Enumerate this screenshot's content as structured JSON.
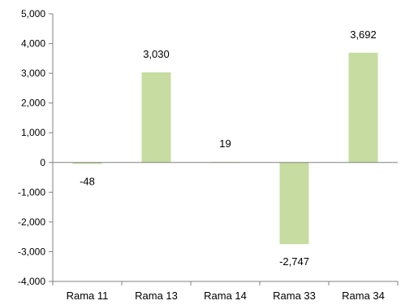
{
  "chart_data": {
    "type": "bar",
    "title": "",
    "xlabel": "",
    "ylabel": "",
    "categories": [
      "Rama 11",
      "Rama 13",
      "Rama 14",
      "Rama 33",
      "Rama 34"
    ],
    "values": [
      -48,
      3030,
      19,
      -2747,
      3692
    ],
    "data_labels": [
      "-48",
      "3,030",
      "19",
      "-2,747",
      "3,692"
    ],
    "y_ticks": [
      5000,
      4000,
      3000,
      2000,
      1000,
      0,
      -1000,
      -2000,
      -3000,
      -4000
    ],
    "y_tick_labels": [
      "5,000",
      "4,000",
      "3,000",
      "2,000",
      "1,000",
      "0",
      "-1,000",
      "-2,000",
      "-3,000",
      "-4,000"
    ],
    "ylim": [
      -4000,
      5000
    ],
    "grid": false,
    "legend": "none",
    "bar_color": "#c6dca0",
    "axis_color": "#808080"
  }
}
